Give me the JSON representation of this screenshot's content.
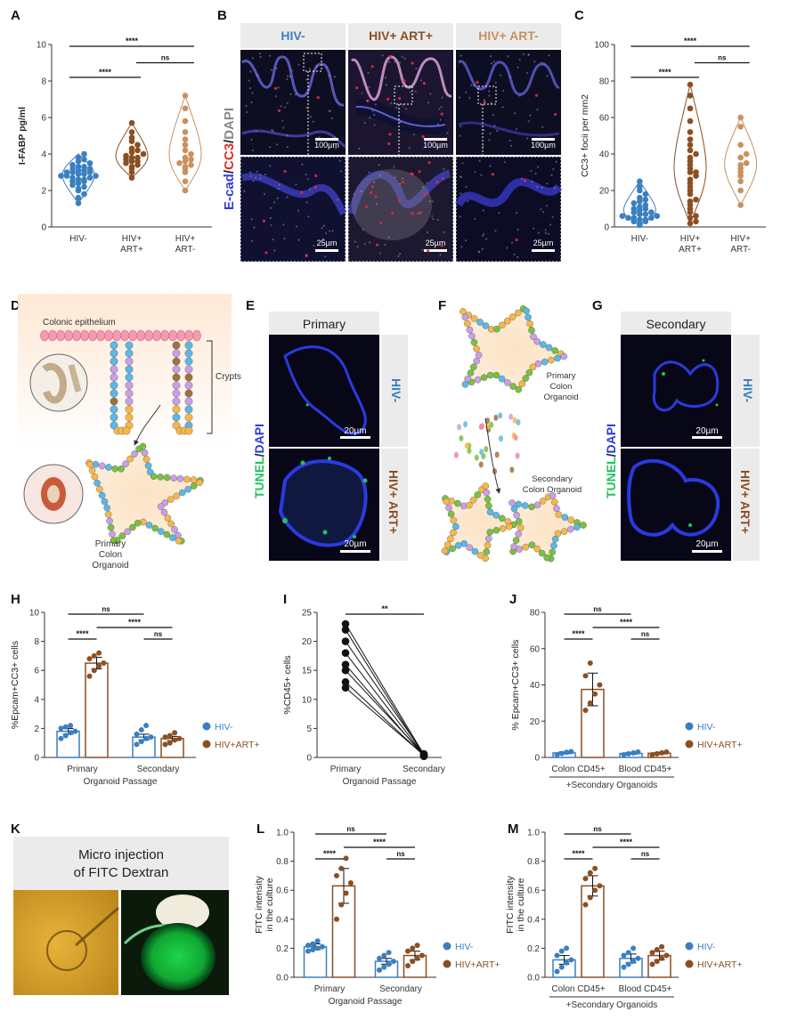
{
  "colors": {
    "hivneg": "#3b7fc0",
    "hivpos_art": "#8b4f22",
    "hivpos_noart": "#c9915e",
    "micro_bg": "#0b0b1e",
    "micro_blue": "#2d3cd6",
    "tunel_green": "#22c25a",
    "header_bg": "#ebebeb"
  },
  "panel_letters": {
    "A": "A",
    "B": "B",
    "C": "C",
    "D": "D",
    "E": "E",
    "F": "F",
    "G": "G",
    "H": "H",
    "I": "I",
    "J": "J",
    "K": "K",
    "L": "L",
    "M": "M"
  },
  "chart_data": [
    {
      "panel": "A",
      "type": "scatter",
      "ylabel": "I-FABP pg/ml",
      "ylim": [
        0,
        10
      ],
      "yticks": [
        "0",
        "2",
        "4",
        "6",
        "8",
        "10"
      ],
      "categories": [
        "HIV-",
        "HIV+\nART+",
        "HIV+\nART-"
      ],
      "series": [
        {
          "name": "HIV-",
          "values": [
            1.3,
            1.6,
            1.8,
            2.0,
            2.1,
            2.2,
            2.3,
            2.4,
            2.5,
            2.5,
            2.6,
            2.6,
            2.7,
            2.7,
            2.8,
            2.8,
            2.8,
            2.9,
            2.9,
            3.0,
            3.0,
            3.0,
            3.1,
            3.1,
            3.2,
            3.2,
            3.3,
            3.3,
            3.4,
            3.5,
            3.6,
            3.7,
            3.8,
            4.0
          ]
        },
        {
          "name": "HIV+ ART+",
          "values": [
            2.7,
            3.0,
            3.2,
            3.3,
            3.4,
            3.5,
            3.6,
            3.6,
            3.7,
            3.8,
            3.8,
            3.9,
            4.0,
            4.1,
            4.2,
            4.3,
            4.5,
            4.7,
            4.9,
            5.2,
            5.7
          ]
        },
        {
          "name": "HIV+ ART-",
          "values": [
            2.0,
            2.5,
            3.0,
            3.2,
            3.3,
            3.4,
            3.5,
            3.6,
            3.7,
            3.8,
            4.0,
            4.2,
            4.5,
            4.8,
            5.2,
            5.8,
            6.5,
            7.2
          ]
        }
      ],
      "annotations": [
        "****",
        "****",
        "ns"
      ]
    },
    {
      "panel": "C",
      "type": "scatter",
      "ylabel": "CC3+ focii per mm2",
      "ylim": [
        0,
        100
      ],
      "yticks": [
        "0",
        "20",
        "40",
        "60",
        "80",
        "100"
      ],
      "categories": [
        "HIV-",
        "HIV+\nART+",
        "HIV+\nART-"
      ],
      "series": [
        {
          "name": "HIV-",
          "values": [
            1,
            2,
            3,
            3,
            4,
            4,
            5,
            5,
            5,
            6,
            6,
            7,
            7,
            8,
            8,
            9,
            10,
            10,
            11,
            12,
            13,
            14,
            15,
            16,
            18,
            20,
            22,
            25
          ]
        },
        {
          "name": "HIV+ ART+",
          "values": [
            2,
            3,
            5,
            6,
            8,
            10,
            12,
            14,
            15,
            18,
            20,
            22,
            24,
            26,
            28,
            30,
            30,
            32,
            34,
            36,
            38,
            40,
            42,
            45,
            48,
            52,
            58,
            65,
            72,
            78
          ]
        },
        {
          "name": "HIV+ ART-",
          "values": [
            12,
            20,
            25,
            28,
            30,
            32,
            34,
            35,
            38,
            40,
            45,
            55,
            60
          ]
        }
      ],
      "annotations": [
        "****",
        "****",
        "ns"
      ]
    },
    {
      "panel": "H",
      "type": "bar",
      "ylabel": "%Epcam+CC3+ cells",
      "xlabel": "Organoid Passage",
      "ylim": [
        0,
        10
      ],
      "yticks": [
        "0",
        "2",
        "4",
        "6",
        "8",
        "10"
      ],
      "categories": [
        "Primary",
        "Secondary"
      ],
      "series": [
        {
          "name": "HIV-",
          "values": [
            1.8,
            1.4
          ],
          "err": [
            0.2,
            0.2
          ],
          "points": [
            [
              1.3,
              1.5,
              1.7,
              1.8,
              2.0,
              2.1,
              2.2
            ],
            [
              0.9,
              1.1,
              1.3,
              1.4,
              1.6,
              1.9,
              2.2
            ]
          ]
        },
        {
          "name": "HIV+ART+",
          "values": [
            6.5,
            1.3
          ],
          "err": [
            0.4,
            0.15
          ],
          "points": [
            [
              5.6,
              6.0,
              6.3,
              6.5,
              6.8,
              7.0,
              7.2
            ],
            [
              0.9,
              1.0,
              1.2,
              1.3,
              1.4,
              1.5,
              1.7
            ]
          ]
        }
      ],
      "legend": [
        "HIV-",
        "HIV+ART+"
      ],
      "annotations": [
        "ns",
        "****",
        "****",
        "ns"
      ]
    },
    {
      "panel": "I",
      "type": "line",
      "ylabel": "%CD45+ cells",
      "xlabel": "Organoid Passage",
      "ylim": [
        0,
        25
      ],
      "yticks": [
        "0",
        "5",
        "10",
        "15",
        "20",
        "25"
      ],
      "categories": [
        "Primary",
        "Secondary"
      ],
      "pairs": [
        [
          23,
          0.5
        ],
        [
          22,
          0.3
        ],
        [
          20,
          0.6
        ],
        [
          18,
          0.4
        ],
        [
          16,
          0.2
        ],
        [
          15,
          0.5
        ],
        [
          13,
          0.3
        ],
        [
          12,
          0.4
        ]
      ],
      "annotations": [
        "**"
      ]
    },
    {
      "panel": "J",
      "type": "bar",
      "ylabel": "% Epcam+CC3+ cells",
      "xlabel": "+Secondary Organoids",
      "ylim": [
        0,
        80
      ],
      "yticks": [
        "0",
        "20",
        "40",
        "60",
        "80"
      ],
      "categories": [
        "Colon CD45+",
        "Blood CD45+"
      ],
      "series": [
        {
          "name": "HIV-",
          "values": [
            2.5,
            2.2
          ],
          "err": [
            0.5,
            0.4
          ],
          "points": [
            [
              1.5,
              2.2,
              2.8,
              3.2
            ],
            [
              1.5,
              2.0,
              2.5,
              3.0
            ]
          ]
        },
        {
          "name": "HIV+ART+",
          "values": [
            37.5,
            2.3
          ],
          "err": [
            9,
            0.4
          ],
          "points": [
            [
              26,
              30,
              35,
              40,
              45,
              52
            ],
            [
              1.5,
              2.0,
              2.5,
              3.0
            ]
          ]
        }
      ],
      "legend": [
        "HIV-",
        "HIV+ART+"
      ],
      "annotations": [
        "ns",
        "****",
        "****",
        "ns"
      ]
    },
    {
      "panel": "L",
      "type": "bar",
      "ylabel": "FITC intensity\nin the culture",
      "xlabel": "Organoid Passage",
      "ylim": [
        0,
        1.0
      ],
      "yticks": [
        "0.0",
        "0.2",
        "0.4",
        "0.6",
        "0.8",
        "1.0"
      ],
      "categories": [
        "Primary",
        "Secondary"
      ],
      "series": [
        {
          "name": "HIV-",
          "values": [
            0.21,
            0.11
          ],
          "err": [
            0.02,
            0.02
          ],
          "points": [
            [
              0.18,
              0.19,
              0.2,
              0.21,
              0.22,
              0.23,
              0.25
            ],
            [
              0.05,
              0.07,
              0.09,
              0.11,
              0.13,
              0.15,
              0.17
            ]
          ]
        },
        {
          "name": "HIV+ART+",
          "values": [
            0.63,
            0.15
          ],
          "err": [
            0.12,
            0.03
          ],
          "points": [
            [
              0.4,
              0.5,
              0.58,
              0.65,
              0.7,
              0.75,
              0.82
            ],
            [
              0.08,
              0.11,
              0.13,
              0.15,
              0.18,
              0.2,
              0.22
            ]
          ]
        }
      ],
      "legend": [
        "HIV-",
        "HIV+ART+"
      ],
      "annotations": [
        "ns",
        "****",
        "****",
        "ns"
      ]
    },
    {
      "panel": "M",
      "type": "bar",
      "ylabel": "FITC intensity\nin the culture",
      "xlabel": "+Secondary Organoids",
      "ylim": [
        0,
        1.0
      ],
      "yticks": [
        "0.0",
        "0.2",
        "0.4",
        "0.6",
        "0.8",
        "1.0"
      ],
      "categories": [
        "Colon CD45+",
        "Blood CD45+"
      ],
      "series": [
        {
          "name": "HIV-",
          "values": [
            0.12,
            0.13
          ],
          "err": [
            0.03,
            0.03
          ],
          "points": [
            [
              0.04,
              0.07,
              0.1,
              0.12,
              0.15,
              0.18,
              0.2
            ],
            [
              0.07,
              0.09,
              0.11,
              0.13,
              0.15,
              0.17,
              0.2
            ]
          ]
        },
        {
          "name": "HIV+ART+",
          "values": [
            0.63,
            0.15
          ],
          "err": [
            0.07,
            0.03
          ],
          "points": [
            [
              0.5,
              0.55,
              0.6,
              0.63,
              0.68,
              0.72,
              0.75
            ],
            [
              0.09,
              0.11,
              0.13,
              0.15,
              0.17,
              0.19,
              0.21
            ]
          ]
        }
      ],
      "legend": [
        "HIV-",
        "HIV+ART+"
      ],
      "annotations": [
        "ns",
        "****",
        "****",
        "ns"
      ]
    }
  ],
  "panelB": {
    "headers": [
      "HIV-",
      "HIV+ ART+",
      "HIV+ ART-"
    ],
    "side_label": [
      "E-cad",
      "/",
      "CC3",
      "/",
      "DAPI"
    ],
    "scalebars_top": [
      "100µm",
      "100µm",
      "100µm"
    ],
    "scalebars_bottom": [
      "25µm",
      "25µm",
      "25µm"
    ]
  },
  "panelD": {
    "epithelium": "Colonic epithelium",
    "crypts": "Crypts",
    "organoid": [
      "Primary",
      "Colon",
      "Organoid"
    ]
  },
  "panelE": {
    "header": "Primary",
    "side": [
      "TUNEL",
      "/",
      "DAPI"
    ],
    "rows": [
      "HIV-",
      "HIV+ ART+"
    ],
    "scalebars": [
      "20µm",
      "20µm"
    ]
  },
  "panelF": {
    "primary": [
      "Primary",
      "Colon",
      "Organoid"
    ],
    "secondary": [
      "Secondary",
      "Colon Organoid"
    ]
  },
  "panelG": {
    "header": "Secondary",
    "side": [
      "TUNEL",
      "/",
      "DAPI"
    ],
    "rows": [
      "HIV-",
      "HIV+ ART+"
    ],
    "scalebars": [
      "20µm",
      "20µm"
    ]
  },
  "panelK": {
    "header": [
      "Micro injection",
      "of FITC Dextran"
    ]
  }
}
